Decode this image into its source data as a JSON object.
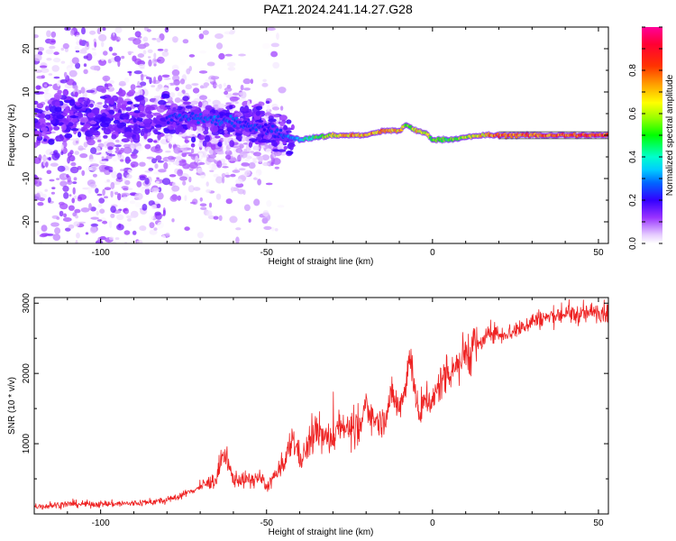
{
  "title": "PAZ1.2024.241.14.27.G28",
  "chart_data": [
    {
      "type": "heatmap",
      "xlabel": "Height of straight line (km)",
      "ylabel": "Frequency (Hz)",
      "xlim": [
        -120,
        53
      ],
      "ylim": [
        -25,
        25
      ],
      "xticks": [
        "-100",
        "-50",
        "0",
        "50"
      ],
      "yticks": [
        "20",
        "10",
        "0",
        "-10",
        "-20"
      ],
      "colorbar": {
        "label": "Normalized spectral amplitude",
        "range": [
          0.0,
          1.0
        ],
        "ticks": [
          "0.0",
          "0.2",
          "0.4",
          "0.6",
          "0.8"
        ]
      },
      "ridge": {
        "x": [
          -80,
          -70,
          -60,
          -50,
          -45,
          -40,
          -35,
          -30,
          -25,
          -20,
          -15,
          -10,
          -8,
          -5,
          -2,
          0,
          5,
          10,
          15,
          20,
          30,
          40,
          53
        ],
        "freq": [
          4,
          4,
          3,
          1.5,
          0,
          -1,
          -0.5,
          0,
          0,
          0,
          1,
          1,
          2.5,
          1,
          0.5,
          -1,
          -1,
          -0.5,
          0,
          0,
          0,
          0,
          0
        ],
        "amplitude": [
          0.25,
          0.3,
          0.3,
          0.25,
          0.3,
          0.4,
          0.55,
          0.7,
          0.8,
          0.8,
          0.85,
          0.8,
          0.6,
          0.75,
          0.7,
          0.6,
          0.6,
          0.65,
          0.75,
          0.9,
          0.9,
          0.9,
          0.9
        ]
      }
    },
    {
      "type": "line",
      "xlabel": "Height of straight line (km)",
      "ylabel": "SNR (10 * v/v)",
      "xlim": [
        -120,
        53
      ],
      "ylim": [
        0,
        3080
      ],
      "xticks": [
        "-100",
        "-50",
        "0",
        "50"
      ],
      "yticks": [
        "3000",
        "2000",
        "1000"
      ],
      "series": [
        {
          "color": "#ee2222",
          "x": [
            -120,
            -110,
            -100,
            -90,
            -80,
            -75,
            -70,
            -65,
            -63,
            -60,
            -55,
            -52,
            -50,
            -48,
            -45,
            -42,
            -40,
            -38,
            -35,
            -32,
            -30,
            -28,
            -25,
            -22,
            -20,
            -18,
            -15,
            -12,
            -10,
            -8,
            -7,
            -6,
            -5,
            -4,
            -2,
            0,
            2,
            5,
            8,
            10,
            12,
            15,
            18,
            20,
            25,
            30,
            35,
            40,
            45,
            50,
            53
          ],
          "y": [
            100,
            140,
            140,
            150,
            190,
            280,
            380,
            500,
            850,
            500,
            480,
            520,
            380,
            520,
            650,
            1100,
            800,
            900,
            1200,
            1050,
            1100,
            1300,
            1200,
            1150,
            1600,
            1350,
            1300,
            1700,
            1500,
            1900,
            2200,
            2100,
            1700,
            1300,
            1700,
            1550,
            1850,
            2050,
            2150,
            2300,
            2350,
            2450,
            2600,
            2550,
            2600,
            2750,
            2800,
            2850,
            2830,
            2900,
            2850
          ]
        }
      ]
    }
  ]
}
